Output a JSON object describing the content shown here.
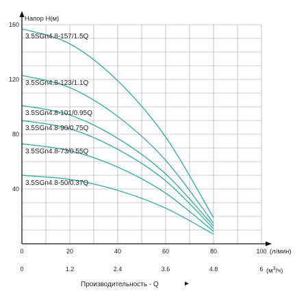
{
  "chart_data": {
    "type": "line",
    "ylabel": "Напор H(м)",
    "x_unit_top": "(л/мин)",
    "x_unit_bottom_prefix": "(м",
    "x_unit_bottom_sup": "3",
    "x_unit_bottom_suffix": "/ч)",
    "xlabel": "Производительность - Q",
    "xlabel_arrow": "►",
    "xlim": [
      0,
      100
    ],
    "ylim": [
      0,
      160
    ],
    "grid": true,
    "x_ticks_lpm": [
      "0",
      "20",
      "40",
      "60",
      "80",
      "100"
    ],
    "x_ticks_m3h": [
      "0",
      "1.2",
      "2.4",
      "3.6",
      "4.8",
      "6"
    ],
    "y_ticks": [
      "40",
      "80",
      "120",
      "160"
    ],
    "line_color": "#3aaea2",
    "series": [
      {
        "name": "3.5SGn4.8-157/1.5Q",
        "x": [
          0,
          20,
          40,
          60,
          80
        ],
        "y": [
          157,
          146,
          119,
          78,
          19
        ]
      },
      {
        "name": "3.5SGn4.8-123/1.1Q",
        "x": [
          0,
          20,
          40,
          60,
          80
        ],
        "y": [
          123,
          114,
          93,
          61,
          15
        ]
      },
      {
        "name": "3.5SGn4.8-101/0.95Q",
        "x": [
          0,
          20,
          40,
          60,
          80
        ],
        "y": [
          101,
          94,
          77,
          51,
          13
        ]
      },
      {
        "name": "3.5SGn4.8-90/0.75Q",
        "x": [
          0,
          20,
          40,
          60,
          80
        ],
        "y": [
          90,
          84,
          69,
          46,
          11
        ]
      },
      {
        "name": "3.5SGn4.8-73/0.55Q",
        "x": [
          0,
          20,
          40,
          60,
          80
        ],
        "y": [
          73,
          68,
          56,
          37,
          9
        ]
      },
      {
        "name": "3.5SGn4.8-50/0.37Q",
        "x": [
          0,
          20,
          40,
          60,
          80
        ],
        "y": [
          50,
          47,
          39,
          26,
          7
        ]
      }
    ]
  }
}
